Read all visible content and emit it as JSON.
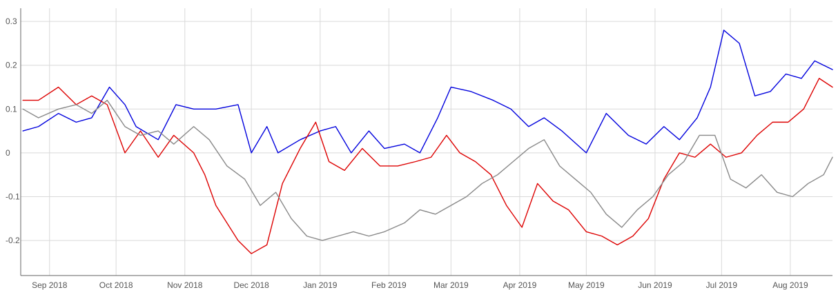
{
  "chart_data": {
    "type": "line",
    "title": "",
    "xlabel": "",
    "ylabel": "",
    "x_ticks": [
      "Sep 2018",
      "Oct 2018",
      "Nov 2018",
      "Dec 2018",
      "Jan 2019",
      "Feb 2019",
      "Mar 2019",
      "Apr 2019",
      "May 2019",
      "Jun 2019",
      "Jul 2019",
      "Aug 2019"
    ],
    "y_ticks": [
      {
        "value": 0.3,
        "label": "0.3"
      },
      {
        "value": 0.2,
        "label": "0.2"
      },
      {
        "value": 0.1,
        "label": "0.1"
      },
      {
        "value": 0.0,
        "label": "0"
      },
      {
        "value": -0.1,
        "label": "-0.1"
      },
      {
        "value": -0.2,
        "label": "-0.2"
      }
    ],
    "xlim": [
      "2018-08-19",
      "2019-08-20"
    ],
    "ylim": [
      -0.28,
      0.33
    ],
    "grid": true,
    "legend": "none",
    "series": [
      {
        "color": "#0000dd",
        "points": [
          [
            "2018-08-20",
            0.05
          ],
          [
            "2018-08-27",
            0.06
          ],
          [
            "2018-09-05",
            0.09
          ],
          [
            "2018-09-13",
            0.07
          ],
          [
            "2018-09-20",
            0.08
          ],
          [
            "2018-09-28",
            0.15
          ],
          [
            "2018-10-05",
            0.11
          ],
          [
            "2018-10-10",
            0.06
          ],
          [
            "2018-10-20",
            0.03
          ],
          [
            "2018-10-28",
            0.11
          ],
          [
            "2018-11-05",
            0.1
          ],
          [
            "2018-11-15",
            0.1
          ],
          [
            "2018-11-25",
            0.11
          ],
          [
            "2018-12-01",
            0.0
          ],
          [
            "2018-12-08",
            0.06
          ],
          [
            "2018-12-13",
            0.0
          ],
          [
            "2018-12-23",
            0.03
          ],
          [
            "2019-01-01",
            0.05
          ],
          [
            "2019-01-08",
            0.06
          ],
          [
            "2019-01-15",
            0.0
          ],
          [
            "2019-01-23",
            0.05
          ],
          [
            "2019-01-30",
            0.01
          ],
          [
            "2019-02-08",
            0.02
          ],
          [
            "2019-02-15",
            0.0
          ],
          [
            "2019-02-23",
            0.08
          ],
          [
            "2019-03-01",
            0.15
          ],
          [
            "2019-03-10",
            0.14
          ],
          [
            "2019-03-20",
            0.12
          ],
          [
            "2019-03-28",
            0.1
          ],
          [
            "2019-04-05",
            0.06
          ],
          [
            "2019-04-12",
            0.08
          ],
          [
            "2019-04-20",
            0.05
          ],
          [
            "2019-05-01",
            0.0
          ],
          [
            "2019-05-10",
            0.09
          ],
          [
            "2019-05-20",
            0.04
          ],
          [
            "2019-05-28",
            0.02
          ],
          [
            "2019-06-05",
            0.06
          ],
          [
            "2019-06-12",
            0.03
          ],
          [
            "2019-06-20",
            0.08
          ],
          [
            "2019-06-26",
            0.15
          ],
          [
            "2019-07-02",
            0.28
          ],
          [
            "2019-07-09",
            0.25
          ],
          [
            "2019-07-16",
            0.13
          ],
          [
            "2019-07-23",
            0.14
          ],
          [
            "2019-07-30",
            0.18
          ],
          [
            "2019-08-06",
            0.17
          ],
          [
            "2019-08-12",
            0.21
          ],
          [
            "2019-08-20",
            0.19
          ]
        ]
      },
      {
        "color": "#dd0000",
        "points": [
          [
            "2018-08-20",
            0.12
          ],
          [
            "2018-08-27",
            0.12
          ],
          [
            "2018-09-05",
            0.15
          ],
          [
            "2018-09-13",
            0.11
          ],
          [
            "2018-09-20",
            0.13
          ],
          [
            "2018-09-27",
            0.11
          ],
          [
            "2018-10-05",
            0.0
          ],
          [
            "2018-10-12",
            0.05
          ],
          [
            "2018-10-20",
            -0.01
          ],
          [
            "2018-10-27",
            0.04
          ],
          [
            "2018-11-05",
            0.0
          ],
          [
            "2018-11-10",
            -0.05
          ],
          [
            "2018-11-15",
            -0.12
          ],
          [
            "2018-11-25",
            -0.2
          ],
          [
            "2018-12-01",
            -0.23
          ],
          [
            "2018-12-08",
            -0.21
          ],
          [
            "2018-12-15",
            -0.07
          ],
          [
            "2018-12-23",
            0.01
          ],
          [
            "2018-12-30",
            0.07
          ],
          [
            "2019-01-05",
            -0.02
          ],
          [
            "2019-01-12",
            -0.04
          ],
          [
            "2019-01-20",
            0.01
          ],
          [
            "2019-01-28",
            -0.03
          ],
          [
            "2019-02-05",
            -0.03
          ],
          [
            "2019-02-13",
            -0.02
          ],
          [
            "2019-02-20",
            -0.01
          ],
          [
            "2019-02-27",
            0.04
          ],
          [
            "2019-03-05",
            0.0
          ],
          [
            "2019-03-12",
            -0.02
          ],
          [
            "2019-03-19",
            -0.05
          ],
          [
            "2019-03-26",
            -0.12
          ],
          [
            "2019-04-02",
            -0.17
          ],
          [
            "2019-04-09",
            -0.07
          ],
          [
            "2019-04-16",
            -0.11
          ],
          [
            "2019-04-23",
            -0.13
          ],
          [
            "2019-05-01",
            -0.18
          ],
          [
            "2019-05-08",
            -0.19
          ],
          [
            "2019-05-15",
            -0.21
          ],
          [
            "2019-05-22",
            -0.19
          ],
          [
            "2019-05-29",
            -0.15
          ],
          [
            "2019-06-05",
            -0.06
          ],
          [
            "2019-06-12",
            0.0
          ],
          [
            "2019-06-19",
            -0.01
          ],
          [
            "2019-06-26",
            0.02
          ],
          [
            "2019-07-03",
            -0.01
          ],
          [
            "2019-07-10",
            0.0
          ],
          [
            "2019-07-17",
            0.04
          ],
          [
            "2019-07-24",
            0.07
          ],
          [
            "2019-07-31",
            0.07
          ],
          [
            "2019-08-07",
            0.1
          ],
          [
            "2019-08-14",
            0.17
          ],
          [
            "2019-08-20",
            0.15
          ]
        ]
      },
      {
        "color": "#888888",
        "points": [
          [
            "2018-08-20",
            0.1
          ],
          [
            "2018-08-27",
            0.08
          ],
          [
            "2018-09-05",
            0.1
          ],
          [
            "2018-09-13",
            0.11
          ],
          [
            "2018-09-20",
            0.09
          ],
          [
            "2018-09-27",
            0.12
          ],
          [
            "2018-10-05",
            0.06
          ],
          [
            "2018-10-12",
            0.04
          ],
          [
            "2018-10-20",
            0.05
          ],
          [
            "2018-10-27",
            0.02
          ],
          [
            "2018-11-05",
            0.06
          ],
          [
            "2018-11-12",
            0.03
          ],
          [
            "2018-11-20",
            -0.03
          ],
          [
            "2018-11-28",
            -0.06
          ],
          [
            "2018-12-05",
            -0.12
          ],
          [
            "2018-12-12",
            -0.09
          ],
          [
            "2018-12-19",
            -0.15
          ],
          [
            "2018-12-26",
            -0.19
          ],
          [
            "2019-01-02",
            -0.2
          ],
          [
            "2019-01-09",
            -0.19
          ],
          [
            "2019-01-16",
            -0.18
          ],
          [
            "2019-01-23",
            -0.19
          ],
          [
            "2019-01-30",
            -0.18
          ],
          [
            "2019-02-08",
            -0.16
          ],
          [
            "2019-02-15",
            -0.13
          ],
          [
            "2019-02-22",
            -0.14
          ],
          [
            "2019-03-01",
            -0.12
          ],
          [
            "2019-03-08",
            -0.1
          ],
          [
            "2019-03-15",
            -0.07
          ],
          [
            "2019-03-22",
            -0.05
          ],
          [
            "2019-03-29",
            -0.02
          ],
          [
            "2019-04-05",
            0.01
          ],
          [
            "2019-04-12",
            0.03
          ],
          [
            "2019-04-19",
            -0.03
          ],
          [
            "2019-04-26",
            -0.06
          ],
          [
            "2019-05-03",
            -0.09
          ],
          [
            "2019-05-10",
            -0.14
          ],
          [
            "2019-05-17",
            -0.17
          ],
          [
            "2019-05-24",
            -0.13
          ],
          [
            "2019-05-31",
            -0.1
          ],
          [
            "2019-06-07",
            -0.05
          ],
          [
            "2019-06-14",
            -0.02
          ],
          [
            "2019-06-21",
            0.04
          ],
          [
            "2019-06-28",
            0.04
          ],
          [
            "2019-07-05",
            -0.06
          ],
          [
            "2019-07-12",
            -0.08
          ],
          [
            "2019-07-19",
            -0.05
          ],
          [
            "2019-07-26",
            -0.09
          ],
          [
            "2019-08-02",
            -0.1
          ],
          [
            "2019-08-09",
            -0.07
          ],
          [
            "2019-08-16",
            -0.05
          ],
          [
            "2019-08-20",
            -0.01
          ]
        ]
      }
    ]
  }
}
